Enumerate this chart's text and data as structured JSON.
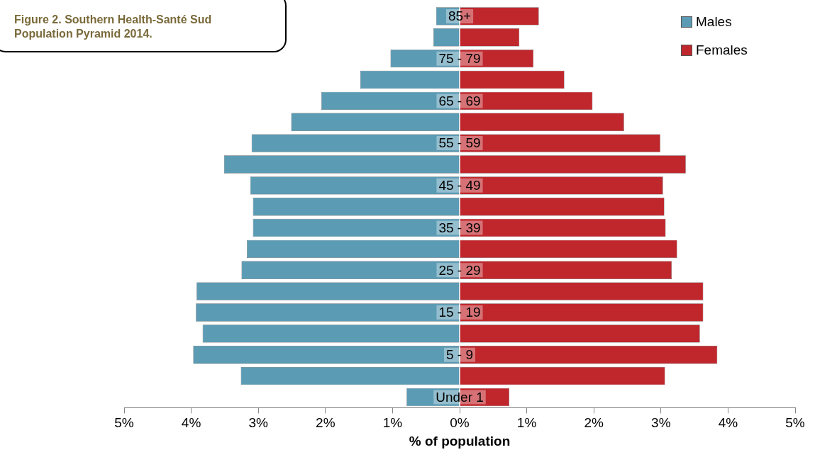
{
  "chart_data": {
    "type": "bar",
    "orientation": "horizontal",
    "stacked": true,
    "title": "Figure 2.  Southern Health-Santé Sud Population Pyramid 2014.",
    "xlabel": "% of population",
    "categories": [
      "85+",
      null,
      "75 - 79",
      null,
      "65 - 69",
      null,
      "55 - 59",
      null,
      "45 - 49",
      null,
      "35 - 39",
      null,
      "25 - 29",
      null,
      "15 - 19",
      null,
      "5 - 9",
      null,
      "Under 1"
    ],
    "series": [
      {
        "name": "Males",
        "color": "#5b9bb4",
        "values": [
          -0.35,
          -0.39,
          -1.03,
          -1.48,
          -2.06,
          -2.51,
          -3.1,
          -3.51,
          -3.12,
          -3.08,
          -3.08,
          -3.17,
          -3.25,
          -3.92,
          -3.93,
          -3.83,
          -3.97,
          -3.26,
          -0.79
        ]
      },
      {
        "name": "Females",
        "color": "#c0272d",
        "values": [
          1.18,
          0.89,
          1.1,
          1.56,
          1.98,
          2.45,
          2.99,
          3.37,
          3.03,
          3.05,
          3.07,
          3.24,
          3.16,
          3.63,
          3.63,
          3.58,
          3.84,
          3.06,
          0.74
        ]
      }
    ],
    "xlim": [
      -5,
      5
    ],
    "xticks": [
      {
        "value": -5,
        "label": "5%"
      },
      {
        "value": -4,
        "label": "4%"
      },
      {
        "value": -3,
        "label": "3%"
      },
      {
        "value": -2,
        "label": "2%"
      },
      {
        "value": -1,
        "label": "1%"
      },
      {
        "value": 0,
        "label": "0%"
      },
      {
        "value": 1,
        "label": "1%"
      },
      {
        "value": 2,
        "label": "2%"
      },
      {
        "value": 3,
        "label": "3%"
      },
      {
        "value": 4,
        "label": "4%"
      },
      {
        "value": 5,
        "label": "5%"
      }
    ],
    "grid": false,
    "legend": "top right"
  }
}
